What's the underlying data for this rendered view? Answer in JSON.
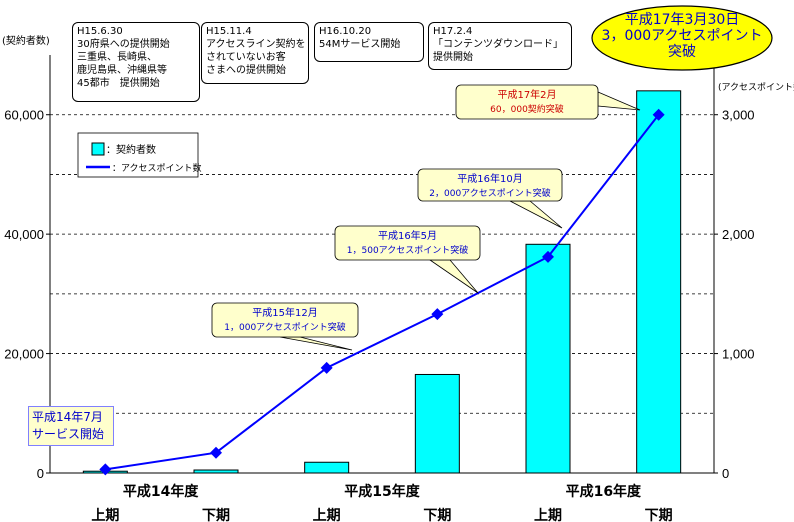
{
  "chart_data": {
    "type": "bar+line",
    "categories": [
      "上期",
      "下期",
      "上期",
      "下期",
      "上期",
      "下期"
    ],
    "fiscal_years": [
      "平成14年度",
      "平成15年度",
      "平成16年度"
    ],
    "y_left": {
      "label": "(契約者数)",
      "lim": [
        0,
        70000
      ],
      "ticks": [
        "0",
        "20,000",
        "40,000",
        "60,000"
      ],
      "tick_values": [
        0,
        20000,
        40000,
        60000
      ]
    },
    "y_right": {
      "label": "(アクセスポイント数)",
      "lim": [
        0,
        3500
      ],
      "ticks": [
        "0",
        "1,000",
        "2,000",
        "3,000"
      ],
      "tick_values": [
        0,
        1000,
        2000,
        3000
      ]
    },
    "grid": "horizontal-dashed",
    "series": [
      {
        "name": "契約者数",
        "type": "bar",
        "axis": "left",
        "color": "#00ffff",
        "values": [
          300,
          500,
          1800,
          16500,
          38300,
          64000
        ]
      },
      {
        "name": "アクセスポイント数",
        "type": "line",
        "axis": "right",
        "color": "#0000ff",
        "values": [
          30,
          170,
          880,
          1330,
          1810,
          3000
        ]
      }
    ],
    "legend": {
      "placement": "top-left",
      "entries": [
        "：契約者数",
        "：アクセスポイント数"
      ]
    },
    "callouts": [
      {
        "lines": [
          "平成15年12月",
          "1，000アクセスポイント突破"
        ]
      },
      {
        "lines": [
          "平成16年5月",
          "1，500アクセスポイント突破"
        ]
      },
      {
        "lines": [
          "平成16年10月",
          "2，000アクセスポイント突破"
        ]
      },
      {
        "lines": [
          "平成17年2月",
          "60，000契約突破"
        ]
      }
    ],
    "highlight": [
      "平成17年3月30日",
      "3，000アクセスポイント",
      "突破"
    ],
    "start_note": [
      "平成14年7月",
      "サービス開始"
    ]
  },
  "notes": [
    {
      "lines": [
        "H15.6.30",
        "30府県への提供開始",
        "三重県、長崎県、",
        "鹿児島県、沖縄県等",
        "45都市　提供開始"
      ]
    },
    {
      "lines": [
        "H15.11.4",
        "アクセスライン契約を",
        "されていないお客",
        "さまへの提供開始"
      ]
    },
    {
      "lines": [
        "H16.10.20",
        "54Mサービス開始"
      ]
    },
    {
      "lines": [
        "H17.2.4",
        "「コンテンツダウンロード」",
        "提供開始"
      ]
    }
  ],
  "colors": {
    "bar": "#00ffff",
    "line": "#0000ff",
    "callout_fill": "#ffffcc",
    "highlight_fill": "#ffff00",
    "highlight_text": "#0000cc"
  }
}
